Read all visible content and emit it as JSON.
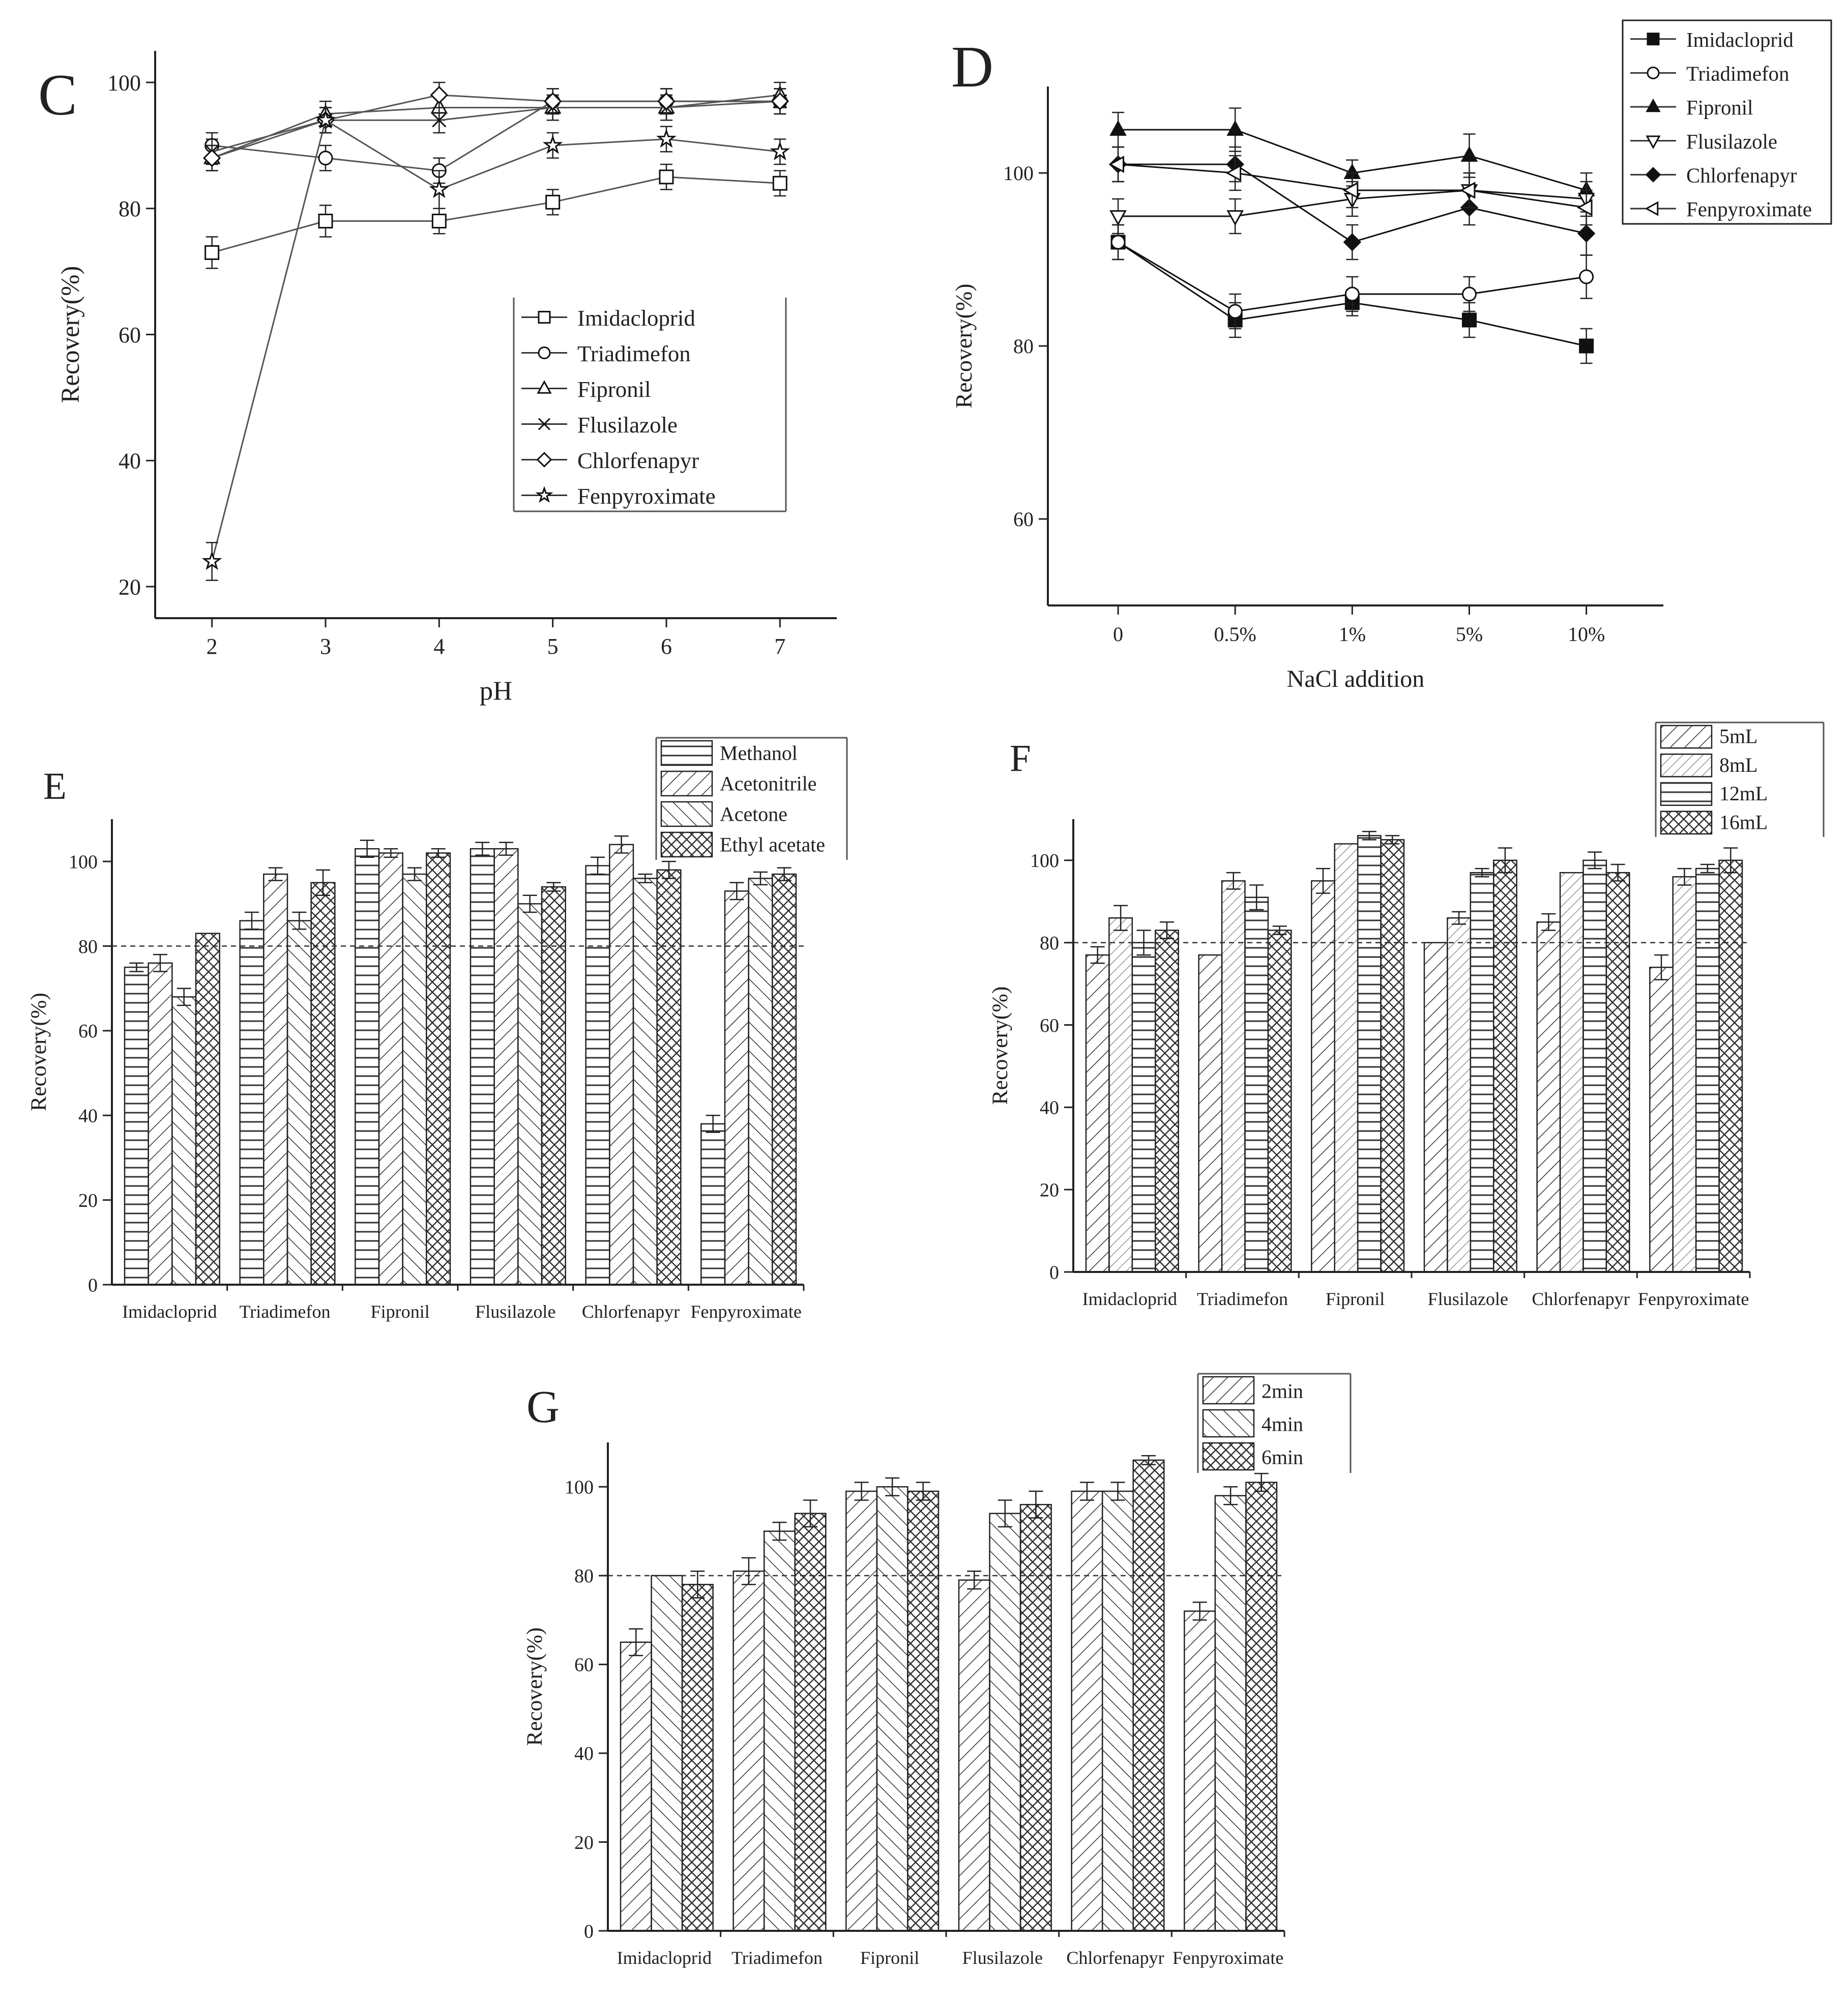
{
  "chart_data": [
    {
      "panel": "C",
      "type": "line",
      "xlabel": "pH",
      "ylabel": "Recovery(%)",
      "x": [
        2,
        3,
        4,
        5,
        6,
        7
      ],
      "xticks": [
        "2",
        "3",
        "4",
        "5",
        "6",
        "7"
      ],
      "ylim": [
        15,
        105
      ],
      "yticks": [
        20,
        40,
        60,
        80,
        100
      ],
      "legend_position": "center-right",
      "series": [
        {
          "name": "Imidacloprid",
          "marker": "square-open",
          "values": [
            73,
            78,
            78,
            81,
            85,
            84
          ],
          "errors": [
            2.5,
            2.5,
            2,
            2,
            2,
            2
          ]
        },
        {
          "name": "Triadimefon",
          "marker": "circle-open",
          "values": [
            90,
            88,
            86,
            97,
            97,
            97
          ],
          "errors": [
            2,
            2,
            2,
            2,
            2,
            2
          ]
        },
        {
          "name": "Fipronil",
          "marker": "triangle-open",
          "values": [
            88,
            95,
            96,
            96,
            96,
            98
          ],
          "errors": [
            2,
            2,
            2,
            2,
            2,
            2
          ]
        },
        {
          "name": "Flusilazole",
          "marker": "x",
          "values": [
            89,
            94,
            94,
            96,
            96,
            97
          ],
          "errors": [
            2,
            2,
            2,
            2,
            2,
            2
          ]
        },
        {
          "name": "Chlorfenapyr",
          "marker": "diamond-open",
          "values": [
            88,
            94,
            98,
            97,
            97,
            97
          ],
          "errors": [
            2,
            2,
            2,
            2,
            2,
            2
          ]
        },
        {
          "name": "Fenpyroximate",
          "marker": "star",
          "values": [
            24,
            94,
            83,
            90,
            91,
            89
          ],
          "errors": [
            3,
            2,
            3,
            2,
            2,
            2
          ]
        }
      ]
    },
    {
      "panel": "D",
      "type": "line",
      "xlabel": "NaCl addition",
      "ylabel": "Recovery(%)",
      "x": [
        "0",
        "0.5%",
        "1%",
        "5%",
        "10%"
      ],
      "ylim": [
        50,
        110
      ],
      "yticks": [
        60,
        80,
        100
      ],
      "legend_position": "top-right",
      "series": [
        {
          "name": "Imidacloprid",
          "marker": "square-filled",
          "values": [
            92,
            83,
            85,
            83,
            80
          ],
          "errors": [
            2,
            2,
            1.5,
            2,
            2
          ]
        },
        {
          "name": "Triadimefon",
          "marker": "circle-open",
          "values": [
            92,
            84,
            86,
            86,
            88
          ],
          "errors": [
            2,
            2,
            2,
            2,
            2.5
          ]
        },
        {
          "name": "Fipronil",
          "marker": "triangle-filled",
          "values": [
            105,
            105,
            100,
            102,
            98
          ],
          "errors": [
            2,
            2.5,
            1.5,
            2.5,
            2
          ]
        },
        {
          "name": "Flusilazole",
          "marker": "triangle-down-open",
          "values": [
            95,
            95,
            97,
            98,
            97
          ],
          "errors": [
            2,
            2,
            2,
            2,
            2
          ]
        },
        {
          "name": "Chlorfenapyr",
          "marker": "diamond-filled",
          "values": [
            101,
            101,
            92,
            96,
            93
          ],
          "errors": [
            2,
            2,
            2,
            2,
            2.5
          ]
        },
        {
          "name": "Fenpyroximate",
          "marker": "triangle-left-open",
          "values": [
            101,
            100,
            98,
            98,
            96
          ],
          "errors": [
            2,
            2,
            2,
            2,
            2
          ]
        }
      ]
    },
    {
      "panel": "E",
      "type": "bar",
      "xlabel": "",
      "ylabel": "Recovery(%)",
      "categories": [
        "Imidacloprid",
        "Triadimefon",
        "Fipronil",
        "Flusilazole",
        "Chlorfenapyr",
        "Fenpyroximate"
      ],
      "ylim": [
        0,
        110
      ],
      "yticks": [
        0,
        20,
        40,
        60,
        80,
        100
      ],
      "reference_line": 80,
      "legend_position": "top-right",
      "series": [
        {
          "name": "Methanol",
          "pattern": "horizontal",
          "values": [
            75,
            86,
            103,
            103,
            99,
            38
          ],
          "errors": [
            1,
            2,
            2,
            1.5,
            2,
            2
          ]
        },
        {
          "name": "Acetonitrile",
          "pattern": "forward",
          "values": [
            76,
            97,
            102,
            103,
            104,
            93
          ],
          "errors": [
            2,
            1.5,
            1,
            1.5,
            2,
            2
          ]
        },
        {
          "name": "Acetone",
          "pattern": "back",
          "values": [
            68,
            86,
            97,
            90,
            96,
            96
          ],
          "errors": [
            2,
            2,
            1.5,
            2,
            1,
            1.5
          ]
        },
        {
          "name": "Ethyl acetate",
          "pattern": "cross",
          "values": [
            83,
            95,
            102,
            94,
            98,
            97
          ],
          "errors": [
            0,
            3,
            1,
            1,
            2,
            1.5
          ]
        }
      ]
    },
    {
      "panel": "F",
      "type": "bar",
      "xlabel": "",
      "ylabel": "Recovery(%)",
      "categories": [
        "Imidacloprid",
        "Triadimefon",
        "Fipronil",
        "Flusilazole",
        "Chlorfenapyr",
        "Fenpyroximate"
      ],
      "ylim": [
        0,
        110
      ],
      "yticks": [
        0,
        20,
        40,
        60,
        80,
        100
      ],
      "reference_line": 80,
      "legend_position": "top-right",
      "series": [
        {
          "name": "5mL",
          "pattern": "forward",
          "values": [
            77,
            77,
            95,
            80,
            85,
            74
          ],
          "errors": [
            2,
            0,
            3,
            0,
            2,
            3
          ]
        },
        {
          "name": "8mL",
          "pattern": "forward-light",
          "values": [
            86,
            95,
            104,
            86,
            97,
            96
          ],
          "errors": [
            3,
            2,
            0,
            1.5,
            0,
            2
          ]
        },
        {
          "name": "12mL",
          "pattern": "horizontal",
          "values": [
            80,
            91,
            106,
            97,
            100,
            98
          ],
          "errors": [
            3,
            3,
            1,
            1,
            2,
            1
          ]
        },
        {
          "name": "16mL",
          "pattern": "cross",
          "values": [
            83,
            83,
            105,
            100,
            97,
            100
          ],
          "errors": [
            2,
            1,
            1,
            3,
            2,
            3
          ]
        }
      ]
    },
    {
      "panel": "G",
      "type": "bar",
      "xlabel": "",
      "ylabel": "Recovery(%)",
      "categories": [
        "Imidacloprid",
        "Triadimefon",
        "Fipronil",
        "Flusilazole",
        "Chlorfenapyr",
        "Fenpyroximate"
      ],
      "ylim": [
        0,
        110
      ],
      "yticks": [
        0,
        20,
        40,
        60,
        80,
        100
      ],
      "reference_line": 80,
      "legend_position": "top-right",
      "series": [
        {
          "name": "2min",
          "pattern": "forward",
          "values": [
            65,
            81,
            99,
            79,
            99,
            72
          ],
          "errors": [
            3,
            3,
            2,
            2,
            2,
            2
          ]
        },
        {
          "name": "4min",
          "pattern": "back",
          "values": [
            80,
            90,
            100,
            94,
            99,
            98
          ],
          "errors": [
            0,
            2,
            2,
            3,
            2,
            2
          ]
        },
        {
          "name": "6min",
          "pattern": "cross",
          "values": [
            78,
            94,
            99,
            96,
            106,
            101
          ],
          "errors": [
            3,
            3,
            2,
            3,
            1,
            2
          ]
        }
      ]
    }
  ]
}
